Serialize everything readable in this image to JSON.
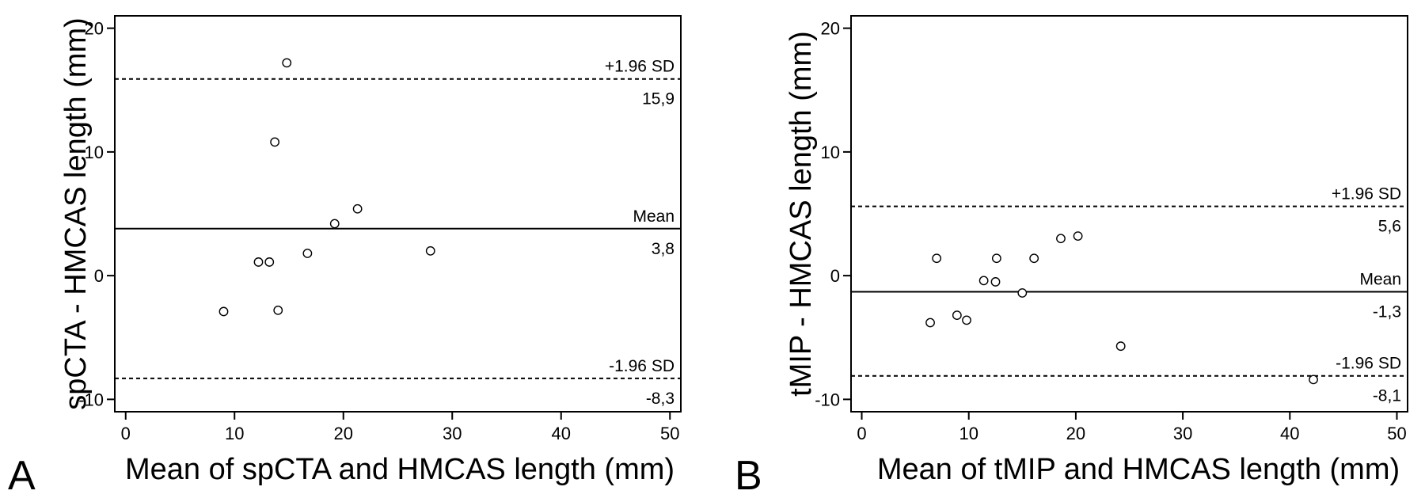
{
  "chart_data": [
    {
      "type": "scatter",
      "panel_label": "A",
      "xlabel": "Mean of spCTA and HMCAS length (mm)",
      "ylabel": "spCTA - HMCAS length (mm)",
      "xlim": [
        -1,
        51
      ],
      "ylim": [
        -11,
        21
      ],
      "xticks": [
        0,
        10,
        20,
        30,
        40,
        50
      ],
      "yticks": [
        -10,
        0,
        10,
        20
      ],
      "grid": false,
      "points": [
        {
          "x": 9.0,
          "y": -2.9
        },
        {
          "x": 12.2,
          "y": 1.1
        },
        {
          "x": 13.2,
          "y": 1.1
        },
        {
          "x": 13.7,
          "y": 10.8
        },
        {
          "x": 14.0,
          "y": -2.8
        },
        {
          "x": 14.8,
          "y": 17.2
        },
        {
          "x": 16.7,
          "y": 1.8
        },
        {
          "x": 19.2,
          "y": 4.2
        },
        {
          "x": 21.3,
          "y": 5.4
        },
        {
          "x": 28.0,
          "y": 2.0
        }
      ],
      "reference_lines": [
        {
          "y": 15.9,
          "style": "dashed",
          "label": "+1.96 SD",
          "value_label": "15,9"
        },
        {
          "y": 3.8,
          "style": "solid",
          "label": "Mean",
          "value_label": "3,8"
        },
        {
          "y": -8.3,
          "style": "dashed",
          "label": "-1.96 SD",
          "value_label": "-8,3"
        }
      ]
    },
    {
      "type": "scatter",
      "panel_label": "B",
      "xlabel": "Mean of tMIP and HMCAS length (mm)",
      "ylabel": "tMIP - HMCAS length (mm)",
      "xlim": [
        -1,
        51
      ],
      "ylim": [
        -11,
        21
      ],
      "xticks": [
        0,
        10,
        20,
        30,
        40,
        50
      ],
      "yticks": [
        -10,
        0,
        10,
        20
      ],
      "grid": false,
      "points": [
        {
          "x": 6.4,
          "y": -3.8
        },
        {
          "x": 7.0,
          "y": 1.4
        },
        {
          "x": 8.9,
          "y": -3.2
        },
        {
          "x": 9.8,
          "y": -3.6
        },
        {
          "x": 11.4,
          "y": -0.4
        },
        {
          "x": 12.5,
          "y": -0.5
        },
        {
          "x": 12.6,
          "y": 1.4
        },
        {
          "x": 15.0,
          "y": -1.4
        },
        {
          "x": 16.1,
          "y": 1.4
        },
        {
          "x": 18.6,
          "y": 3.0
        },
        {
          "x": 20.2,
          "y": 3.2
        },
        {
          "x": 24.2,
          "y": -5.7
        },
        {
          "x": 42.2,
          "y": -8.4
        }
      ],
      "reference_lines": [
        {
          "y": 5.6,
          "style": "dashed",
          "label": "+1.96 SD",
          "value_label": "5,6"
        },
        {
          "y": -1.3,
          "style": "solid",
          "label": "Mean",
          "value_label": "-1,3"
        },
        {
          "y": -8.1,
          "style": "dashed",
          "label": "-1.96 SD",
          "value_label": "-8,1"
        }
      ]
    }
  ]
}
